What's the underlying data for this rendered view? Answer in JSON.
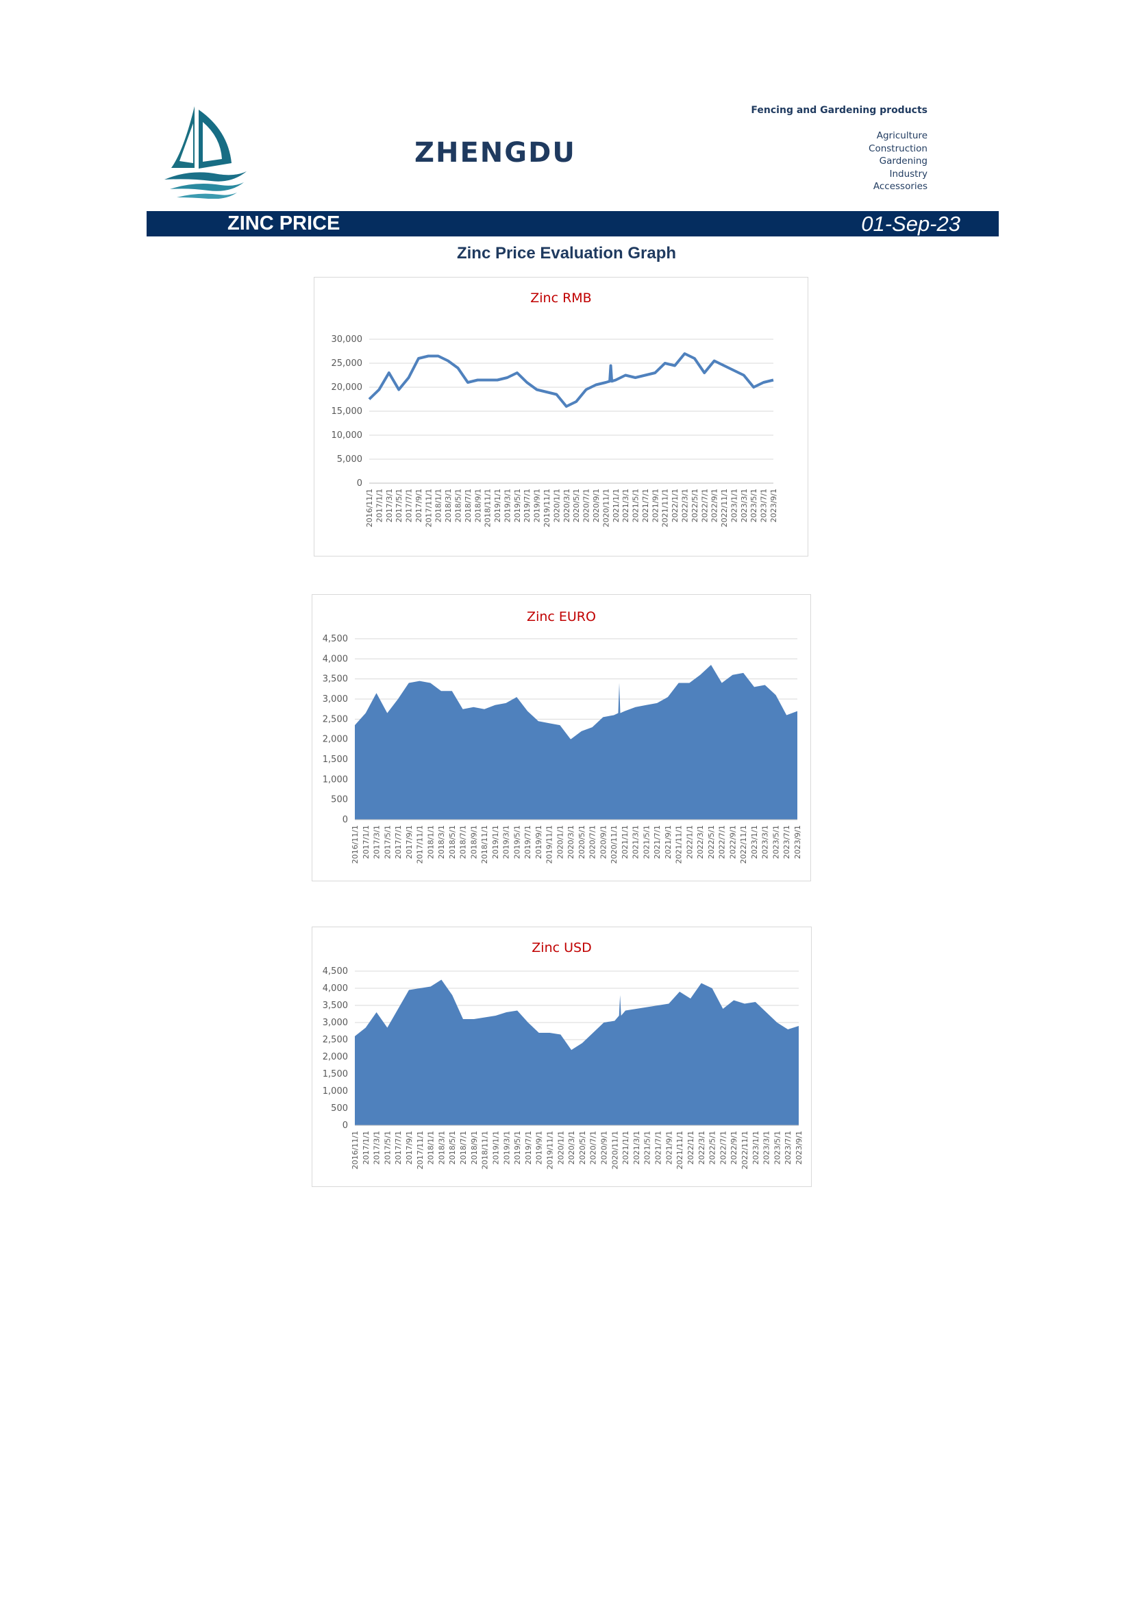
{
  "header": {
    "company": "ZHENGDU",
    "product_line": "Fencing and Gardening products",
    "categories": [
      "Agriculture",
      "Construction",
      "Gardening",
      "Industry",
      "Accessories"
    ]
  },
  "banner": {
    "title": "ZINC PRICE",
    "date": "01-Sep-23"
  },
  "page_title": "Zinc Price Evaluation Graph",
  "colors": {
    "banner": "#052d5f",
    "series": "#4f81bd",
    "chart_title": "#c00000",
    "text": "#1f3a5f"
  },
  "chart_data": [
    {
      "type": "line",
      "title": "Zinc RMB",
      "ylim": [
        0,
        30000
      ],
      "yticks": [
        0,
        5000,
        10000,
        15000,
        20000,
        25000,
        30000
      ],
      "ytick_labels": [
        "0",
        "5,000",
        "10,000",
        "15,000",
        "20,000",
        "25,000",
        "30,000"
      ],
      "grid": true,
      "x": [
        "2016/11/1",
        "2017/1/1",
        "2017/3/1",
        "2017/5/1",
        "2017/7/1",
        "2017/9/1",
        "2017/11/1",
        "2018/1/1",
        "2018/3/1",
        "2018/5/1",
        "2018/7/1",
        "2018/9/1",
        "2018/11/1",
        "2019/1/1",
        "2019/3/1",
        "2019/5/1",
        "2019/7/1",
        "2019/9/1",
        "2019/11/1",
        "2020/1/1",
        "2020/3/1",
        "2020/5/1",
        "2020/7/1",
        "2020/9/1",
        "2020/11/1",
        "2021/1/1",
        "2021/3/1",
        "2021/5/1",
        "2021/7/1",
        "2021/9/1",
        "2021/11/1",
        "2022/1/1",
        "2022/3/1",
        "2022/5/1",
        "2022/7/1",
        "2022/9/1",
        "2022/11/1",
        "2023/1/1",
        "2023/3/1",
        "2023/5/1",
        "2023/7/1",
        "2023/9/1"
      ],
      "values": [
        17500,
        19500,
        23000,
        19500,
        22000,
        26000,
        26500,
        26500,
        25500,
        24000,
        21000,
        21500,
        21500,
        21500,
        22000,
        23000,
        21000,
        19500,
        19000,
        18500,
        16000,
        17000,
        19500,
        20500,
        21000,
        21500,
        22500,
        22000,
        22500,
        23000,
        25000,
        24500,
        27000,
        26000,
        23000,
        25500,
        24500,
        23500,
        22500,
        20000,
        21000,
        21500
      ],
      "spike": {
        "x": "2020/12/1",
        "value": 24500
      }
    },
    {
      "type": "area",
      "title": "Zinc EURO",
      "ylim": [
        0,
        4500
      ],
      "yticks": [
        0,
        500,
        1000,
        1500,
        2000,
        2500,
        3000,
        3500,
        4000,
        4500
      ],
      "ytick_labels": [
        "0",
        "500",
        "1,000",
        "1,500",
        "2,000",
        "2,500",
        "3,000",
        "3,500",
        "4,000",
        "4,500"
      ],
      "grid": true,
      "x": [
        "2016/11/1",
        "2017/1/1",
        "2017/3/1",
        "2017/5/1",
        "2017/7/1",
        "2017/9/1",
        "2017/11/1",
        "2018/1/1",
        "2018/3/1",
        "2018/5/1",
        "2018/7/1",
        "2018/9/1",
        "2018/11/1",
        "2019/1/1",
        "2019/3/1",
        "2019/5/1",
        "2019/7/1",
        "2019/9/1",
        "2019/11/1",
        "2020/1/1",
        "2020/3/1",
        "2020/5/1",
        "2020/7/1",
        "2020/9/1",
        "2020/11/1",
        "2021/1/1",
        "2021/3/1",
        "2021/5/1",
        "2021/7/1",
        "2021/9/1",
        "2021/11/1",
        "2022/1/1",
        "2022/3/1",
        "2022/5/1",
        "2022/7/1",
        "2022/9/1",
        "2022/11/1",
        "2023/1/1",
        "2023/3/1",
        "2023/5/1",
        "2023/7/1",
        "2023/9/1"
      ],
      "values": [
        2350,
        2650,
        3150,
        2650,
        3000,
        3400,
        3450,
        3400,
        3200,
        3200,
        2750,
        2800,
        2750,
        2850,
        2900,
        3050,
        2700,
        2450,
        2400,
        2350,
        2000,
        2200,
        2300,
        2550,
        2600,
        2700,
        2800,
        2850,
        2900,
        3050,
        3400,
        3400,
        3600,
        3850,
        3400,
        3600,
        3650,
        3300,
        3350,
        3100,
        2600,
        2700
      ],
      "spike": {
        "x": "2020/12/1",
        "value": 3400
      }
    },
    {
      "type": "area",
      "title": "Zinc USD",
      "ylim": [
        0,
        4500
      ],
      "yticks": [
        0,
        500,
        1000,
        1500,
        2000,
        2500,
        3000,
        3500,
        4000,
        4500
      ],
      "ytick_labels": [
        "0",
        "500",
        "1,000",
        "1,500",
        "2,000",
        "2,500",
        "3,000",
        "3,500",
        "4,000",
        "4,500"
      ],
      "grid": true,
      "x": [
        "2016/11/1",
        "2017/1/1",
        "2017/3/1",
        "2017/5/1",
        "2017/7/1",
        "2017/9/1",
        "2017/11/1",
        "2018/1/1",
        "2018/3/1",
        "2018/5/1",
        "2018/7/1",
        "2018/9/1",
        "2018/11/1",
        "2019/1/1",
        "2019/3/1",
        "2019/5/1",
        "2019/7/1",
        "2019/9/1",
        "2019/11/1",
        "2020/1/1",
        "2020/3/1",
        "2020/5/1",
        "2020/7/1",
        "2020/9/1",
        "2020/11/1",
        "2021/1/1",
        "2021/3/1",
        "2021/5/1",
        "2021/7/1",
        "2021/9/1",
        "2021/11/1",
        "2022/1/1",
        "2022/3/1",
        "2022/5/1",
        "2022/7/1",
        "2022/9/1",
        "2022/11/1",
        "2023/1/1",
        "2023/3/1",
        "2023/5/1",
        "2023/7/1",
        "2023/9/1"
      ],
      "values": [
        2600,
        2850,
        3300,
        2850,
        3400,
        3950,
        4000,
        4050,
        4250,
        3800,
        3100,
        3100,
        3150,
        3200,
        3300,
        3350,
        3000,
        2700,
        2700,
        2650,
        2200,
        2400,
        2700,
        3000,
        3050,
        3350,
        3400,
        3450,
        3500,
        3550,
        3900,
        3700,
        4150,
        4000,
        3400,
        3650,
        3550,
        3600,
        3300,
        3000,
        2800,
        2900
      ],
      "spike": {
        "x": "2020/12/1",
        "value": 3800
      }
    }
  ]
}
